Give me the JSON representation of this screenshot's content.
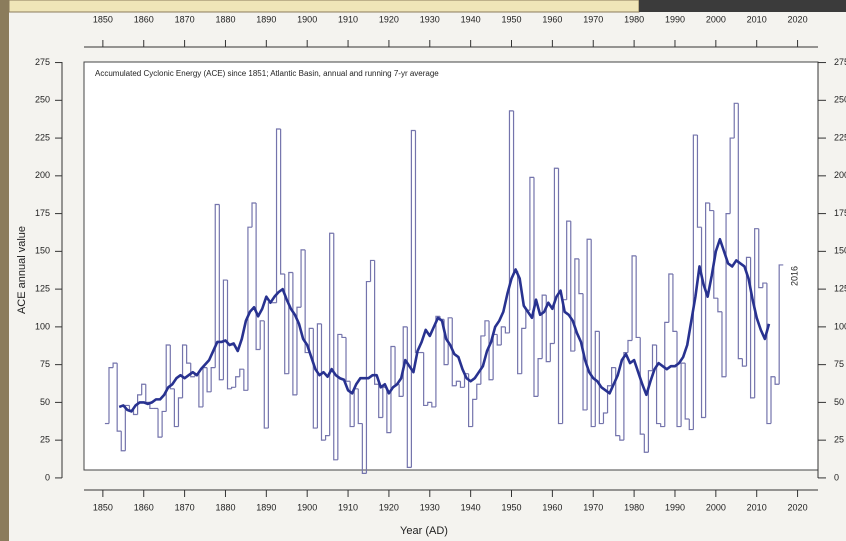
{
  "chart_data": {
    "type": "line",
    "title": "Accumulated Cyclonic Energy (ACE) since 1851; Atlantic Basin, annual and running 7-yr average",
    "xlabel": "Year (AD)",
    "ylabel": "ACE annual value",
    "annotation": "2016",
    "xlim": [
      1840,
      2025
    ],
    "ylim": [
      -8,
      280
    ],
    "xticks": [
      1850,
      1860,
      1870,
      1880,
      1890,
      1900,
      1910,
      1920,
      1930,
      1940,
      1950,
      1960,
      1970,
      1980,
      1990,
      2000,
      2010,
      2020
    ],
    "yticks": [
      0,
      25,
      50,
      75,
      100,
      125,
      150,
      175,
      200,
      225,
      250,
      275
    ],
    "x": [
      1851,
      1852,
      1853,
      1854,
      1855,
      1856,
      1857,
      1858,
      1859,
      1860,
      1861,
      1862,
      1863,
      1864,
      1865,
      1866,
      1867,
      1868,
      1869,
      1870,
      1871,
      1872,
      1873,
      1874,
      1875,
      1876,
      1877,
      1878,
      1879,
      1880,
      1881,
      1882,
      1883,
      1884,
      1885,
      1886,
      1887,
      1888,
      1889,
      1890,
      1891,
      1892,
      1893,
      1894,
      1895,
      1896,
      1897,
      1898,
      1899,
      1900,
      1901,
      1902,
      1903,
      1904,
      1905,
      1906,
      1907,
      1908,
      1909,
      1910,
      1911,
      1912,
      1913,
      1914,
      1915,
      1916,
      1917,
      1918,
      1919,
      1920,
      1921,
      1922,
      1923,
      1924,
      1925,
      1926,
      1927,
      1928,
      1929,
      1930,
      1931,
      1932,
      1933,
      1934,
      1935,
      1936,
      1937,
      1938,
      1939,
      1940,
      1941,
      1942,
      1943,
      1944,
      1945,
      1946,
      1947,
      1948,
      1949,
      1950,
      1951,
      1952,
      1953,
      1954,
      1955,
      1956,
      1957,
      1958,
      1959,
      1960,
      1961,
      1962,
      1963,
      1964,
      1965,
      1966,
      1967,
      1968,
      1969,
      1970,
      1971,
      1972,
      1973,
      1974,
      1975,
      1976,
      1977,
      1978,
      1979,
      1980,
      1981,
      1982,
      1983,
      1984,
      1985,
      1986,
      1987,
      1988,
      1989,
      1990,
      1991,
      1992,
      1993,
      1994,
      1995,
      1996,
      1997,
      1998,
      1999,
      2000,
      2001,
      2002,
      2003,
      2004,
      2005,
      2006,
      2007,
      2008,
      2009,
      2010,
      2011,
      2012,
      2013,
      2014,
      2015,
      2016
    ],
    "series": [
      {
        "color": "#7474ac",
        "drawstyle": "steps",
        "values": [
          36,
          73,
          76,
          31,
          18,
          48,
          45,
          42,
          55,
          62,
          50,
          46,
          46,
          27,
          44,
          88,
          59,
          34,
          53,
          88,
          76,
          67,
          69,
          47,
          73,
          57,
          73,
          181,
          65,
          131,
          59,
          60,
          67,
          72,
          58,
          166,
          182,
          85,
          104,
          33,
          116,
          116,
          231,
          135,
          69,
          136,
          55,
          113,
          151,
          83,
          99,
          33,
          102,
          25,
          28,
          162,
          12,
          95,
          93,
          64,
          34,
          59,
          36,
          3,
          130,
          144,
          62,
          40,
          60,
          30,
          87,
          62,
          54,
          100,
          7,
          230,
          83,
          83,
          48,
          50,
          47,
          107,
          105,
          75,
          106,
          61,
          64,
          60,
          69,
          34,
          52,
          62,
          94,
          104,
          65,
          95,
          88,
          100,
          96,
          243,
          137,
          69,
          99,
          111,
          199,
          54,
          79,
          121,
          77,
          89,
          205,
          36,
          118,
          170,
          84,
          145,
          122,
          45,
          158,
          34,
          97,
          36,
          43,
          61,
          73,
          28,
          25,
          83,
          91,
          147,
          93,
          29,
          17,
          71,
          88,
          36,
          34,
          103,
          135,
          97,
          34,
          76,
          39,
          32,
          227,
          166,
          40,
          182,
          177,
          119,
          110,
          67,
          175,
          225,
          248,
          79,
          74,
          146,
          53,
          165,
          126,
          129,
          36,
          67,
          62,
          141
        ]
      },
      {
        "color": "#283290",
        "values": [
          null,
          null,
          null,
          47,
          48,
          45,
          44,
          48,
          50,
          50,
          49,
          50,
          52,
          52,
          55,
          60,
          62,
          66,
          68,
          66,
          68,
          70,
          68,
          72,
          75,
          78,
          84,
          90,
          90,
          91,
          88,
          89,
          84,
          92,
          104,
          110,
          113,
          107,
          112,
          120,
          116,
          120,
          123,
          125,
          118,
          112,
          108,
          102,
          92,
          88,
          80,
          72,
          68,
          70,
          67,
          72,
          68,
          66,
          65,
          58,
          56,
          62,
          66,
          66,
          66,
          68,
          68,
          60,
          62,
          56,
          60,
          62,
          66,
          78,
          74,
          70,
          84,
          90,
          98,
          94,
          100,
          106,
          104,
          92,
          88,
          82,
          80,
          72,
          66,
          64,
          66,
          70,
          74,
          84,
          90,
          100,
          104,
          110,
          122,
          132,
          138,
          132,
          114,
          110,
          106,
          118,
          108,
          110,
          116,
          112,
          120,
          124,
          110,
          108,
          104,
          96,
          90,
          78,
          70,
          66,
          64,
          60,
          58,
          56,
          62,
          68,
          78,
          82,
          76,
          78,
          70,
          62,
          55,
          64,
          72,
          76,
          74,
          72,
          74,
          74,
          76,
          80,
          88,
          104,
          120,
          140,
          128,
          120,
          134,
          150,
          158,
          150,
          142,
          140,
          144,
          142,
          140,
          132,
          118,
          106,
          98,
          92,
          102,
          null,
          null,
          null
        ]
      }
    ]
  }
}
